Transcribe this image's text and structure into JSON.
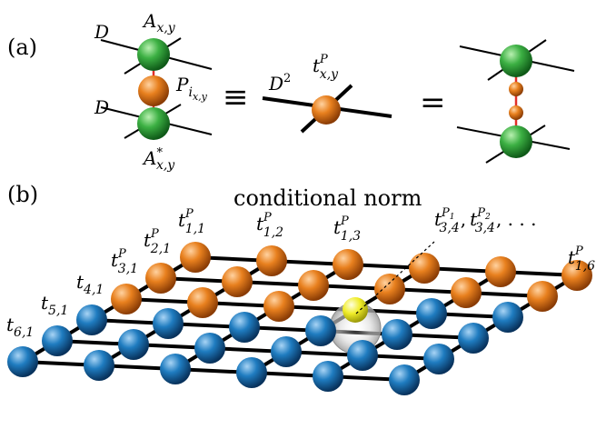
{
  "panel_a": {
    "label": "(a)",
    "bond_top": "D",
    "bond_bottom": "D",
    "A_main": "A",
    "A_sub": "x,y",
    "P_main": "P",
    "P_sub": "i",
    "P_subsub": "x,y",
    "Astar_main": "A",
    "Astar_sup": "*",
    "Astar_sub": "x,y",
    "equiv": "≡",
    "D2_main": "D",
    "D2_sup": "2",
    "t_main": "t",
    "t_sup": "P",
    "t_sub": "x,y",
    "equals": "="
  },
  "panel_b": {
    "label": "(b)",
    "title": "conditional norm",
    "labels": {
      "t11": {
        "main": "t",
        "sup": "P",
        "sub": "1,1"
      },
      "t21": {
        "main": "t",
        "sup": "P",
        "sub": "2,1"
      },
      "t31": {
        "main": "t",
        "sup": "P",
        "sub": "3,1"
      },
      "t41": {
        "main": "t",
        "sub": "4,1"
      },
      "t51": {
        "main": "t",
        "sub": "5,1"
      },
      "t61": {
        "main": "t",
        "sub": "6,1"
      },
      "t12": {
        "main": "t",
        "sup": "P",
        "sub": "1,2"
      },
      "t13": {
        "main": "t",
        "sup": "P",
        "sub": "1,3"
      },
      "t16": {
        "main": "t",
        "sup": "P",
        "sub": "1,6"
      },
      "t34": {
        "main": "t",
        "sup1": "P",
        "supsub1": "1",
        "sub1": "3,4",
        "sep": ",",
        "sup2": "P",
        "supsub2": "2",
        "sub2": "3,4",
        "tail": ", . . ."
      }
    }
  },
  "colors": {
    "green": "#2e9e3a",
    "orange": "#e07a1e",
    "blue": "#1f78b4",
    "yellow": "#f2ee2a",
    "red_link": "#e0302a",
    "line": "#000000"
  }
}
